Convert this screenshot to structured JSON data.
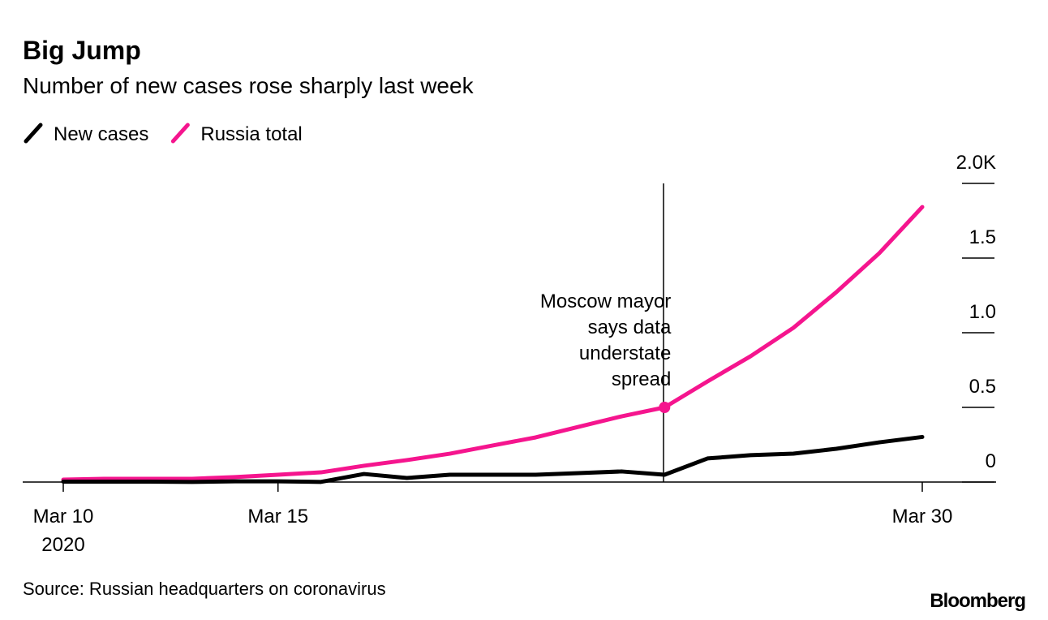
{
  "chart_data": {
    "type": "line",
    "title": "Big Jump",
    "subtitle": "Number of new cases rose sharply last week",
    "categories": [
      "Mar 10",
      null,
      null,
      null,
      null,
      "Mar 15",
      null,
      null,
      null,
      null,
      null,
      null,
      null,
      null,
      null,
      null,
      null,
      null,
      null,
      null,
      "Mar 30"
    ],
    "year_label": "2020",
    "series": [
      {
        "name": "Russia total",
        "color": "#f5158e",
        "values": [
          0.016,
          0.022,
          0.022,
          0.022,
          0.033,
          0.049,
          0.065,
          0.109,
          0.147,
          0.19,
          0.245,
          0.299,
          0.37,
          0.44,
          0.5,
          0.674,
          0.842,
          1.033,
          1.272,
          1.533,
          1.842
        ]
      },
      {
        "name": "New cases",
        "color": "#000000",
        "values": [
          0.003,
          0.003,
          0.003,
          0.001,
          0.005,
          0.005,
          0.001,
          0.054,
          0.027,
          0.049,
          0.049,
          0.049,
          0.06,
          0.071,
          0.049,
          0.158,
          0.18,
          0.19,
          0.223,
          0.266,
          0.302
        ]
      }
    ],
    "legend_order": [
      "New cases",
      "Russia total"
    ],
    "ylim": [
      0,
      2
    ],
    "yticks": [
      0,
      0.5,
      {
        "value": 1,
        "label": "1.0"
      },
      1.5,
      {
        "value": 2,
        "label": "2.0K"
      }
    ],
    "annotation": [
      "Moscow mayor",
      "says data",
      "understate",
      "spread"
    ],
    "source": "Source: Russian headquarters on coronavirus",
    "brand": "Bloomberg"
  }
}
